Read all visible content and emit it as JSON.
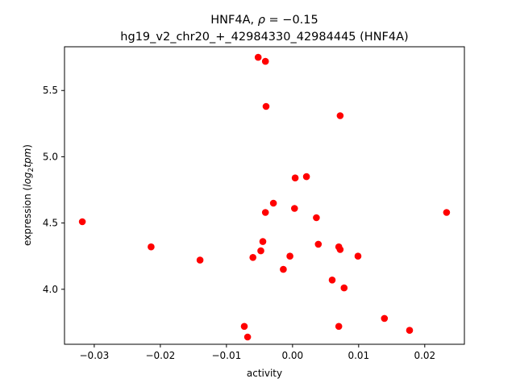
{
  "chart_data": {
    "type": "scatter",
    "title_line1_prefix": "HNF4A, ",
    "title_line1_symbol": "ρ",
    "title_line1_suffix": " = −0.15",
    "title_line2": "hg19_v2_chr20_+_42984330_42984445 (HNF4A)",
    "xlabel": "activity",
    "ylabel_prefix": "expression (",
    "ylabel_log": "log",
    "ylabel_sub": "2",
    "ylabel_tpm": "tpm",
    "ylabel_suffix": ")",
    "xlim": [
      -0.0345,
      0.026
    ],
    "ylim": [
      3.585,
      5.83
    ],
    "x_ticks": [
      {
        "value": -0.03,
        "label": "−0.03"
      },
      {
        "value": -0.02,
        "label": "−0.02"
      },
      {
        "value": -0.01,
        "label": "−0.01"
      },
      {
        "value": 0.0,
        "label": "0.00"
      },
      {
        "value": 0.01,
        "label": "0.01"
      },
      {
        "value": 0.02,
        "label": "0.02"
      }
    ],
    "y_ticks": [
      {
        "value": 4.0,
        "label": "4.0"
      },
      {
        "value": 4.5,
        "label": "4.5"
      },
      {
        "value": 5.0,
        "label": "5.0"
      },
      {
        "value": 5.5,
        "label": "5.5"
      }
    ],
    "marker_color": "#ff0000",
    "points": [
      {
        "x": -0.0318,
        "y": 4.51
      },
      {
        "x": -0.0214,
        "y": 4.32
      },
      {
        "x": -0.014,
        "y": 4.22
      },
      {
        "x": -0.0073,
        "y": 3.72
      },
      {
        "x": -0.0068,
        "y": 3.64
      },
      {
        "x": -0.006,
        "y": 4.24
      },
      {
        "x": -0.0052,
        "y": 5.75
      },
      {
        "x": -0.0048,
        "y": 4.29
      },
      {
        "x": -0.0045,
        "y": 4.36
      },
      {
        "x": -0.0041,
        "y": 5.72
      },
      {
        "x": -0.0041,
        "y": 4.58
      },
      {
        "x": -0.004,
        "y": 5.38
      },
      {
        "x": -0.0029,
        "y": 4.65
      },
      {
        "x": -0.0014,
        "y": 4.15
      },
      {
        "x": -0.0004,
        "y": 4.25
      },
      {
        "x": 0.0003,
        "y": 4.61
      },
      {
        "x": 0.0004,
        "y": 4.84
      },
      {
        "x": 0.0021,
        "y": 4.85
      },
      {
        "x": 0.0036,
        "y": 4.54
      },
      {
        "x": 0.0039,
        "y": 4.34
      },
      {
        "x": 0.006,
        "y": 4.07
      },
      {
        "x": 0.007,
        "y": 4.32
      },
      {
        "x": 0.007,
        "y": 3.72
      },
      {
        "x": 0.0072,
        "y": 4.3
      },
      {
        "x": 0.0072,
        "y": 5.31
      },
      {
        "x": 0.0078,
        "y": 4.01
      },
      {
        "x": 0.0099,
        "y": 4.25
      },
      {
        "x": 0.0139,
        "y": 3.78
      },
      {
        "x": 0.0177,
        "y": 3.69
      },
      {
        "x": 0.0233,
        "y": 4.58
      }
    ]
  }
}
